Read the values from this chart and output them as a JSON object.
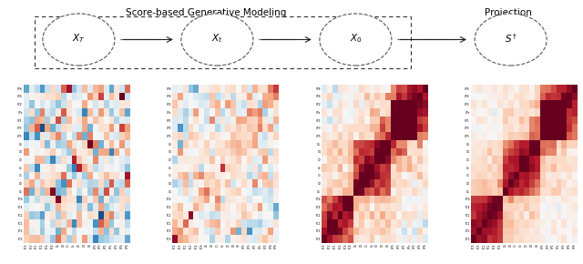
{
  "title_left": "Score-based Generative Modeling",
  "title_right": "Projection",
  "labels_row": [
    "FC5",
    "FC3",
    "FC1",
    "FC2",
    "FC4",
    "FC6",
    "C5",
    "C3",
    "C1",
    "Cz",
    "C2",
    "C4",
    "C6",
    "CP5",
    "CP3",
    "CP1",
    "CPz",
    "CP2",
    "CP4",
    "CP6"
  ],
  "labels_col": [
    "FC5",
    "FC3",
    "FC1",
    "FC2",
    "FC4",
    "FC6",
    "C5",
    "C3",
    "C1",
    "Cz",
    "C2",
    "C4",
    "C6",
    "CP5",
    "CP3",
    "CP1",
    "CPz",
    "CP2",
    "CP4",
    "CP6"
  ],
  "vmin": -1.0,
  "vmax": 1.0,
  "n": 20
}
